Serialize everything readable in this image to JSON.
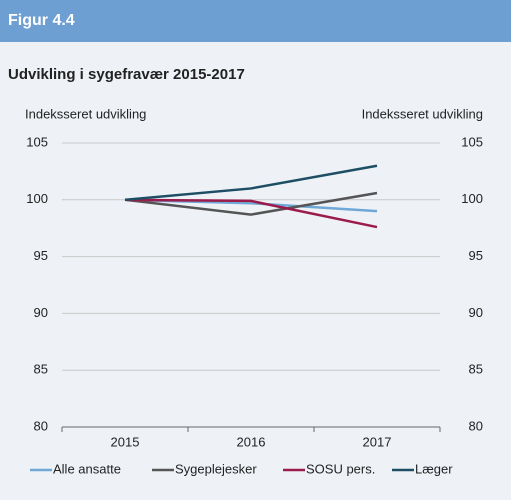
{
  "header": "Figur 4.4",
  "chart_data": {
    "type": "line",
    "title": "Udvikling i sygefravær 2015-2017",
    "ylabel": "Indeksseret udvikling",
    "y2label": "Indeksseret udvikling",
    "categories": [
      "2015",
      "2016",
      "2017"
    ],
    "series": [
      {
        "name": "Alle ansatte",
        "color": "#6fa8d6",
        "values": [
          100,
          99.7,
          99.0
        ]
      },
      {
        "name": "Sygeplejesker",
        "color": "#555555",
        "values": [
          100,
          98.7,
          100.6
        ]
      },
      {
        "name": "SOSU pers.",
        "color": "#9b1b4b",
        "values": [
          100,
          99.9,
          97.6
        ]
      },
      {
        "name": "Læger",
        "color": "#1d4e63",
        "values": [
          100,
          101.0,
          103.0
        ]
      }
    ],
    "ylim": [
      80,
      105
    ],
    "yticks": [
      80,
      85,
      90,
      95,
      100,
      105
    ],
    "y2lim": [
      80,
      105
    ],
    "y2ticks": [
      80,
      85,
      90,
      95,
      100,
      105
    ],
    "grid": true,
    "legend": "bottom"
  }
}
